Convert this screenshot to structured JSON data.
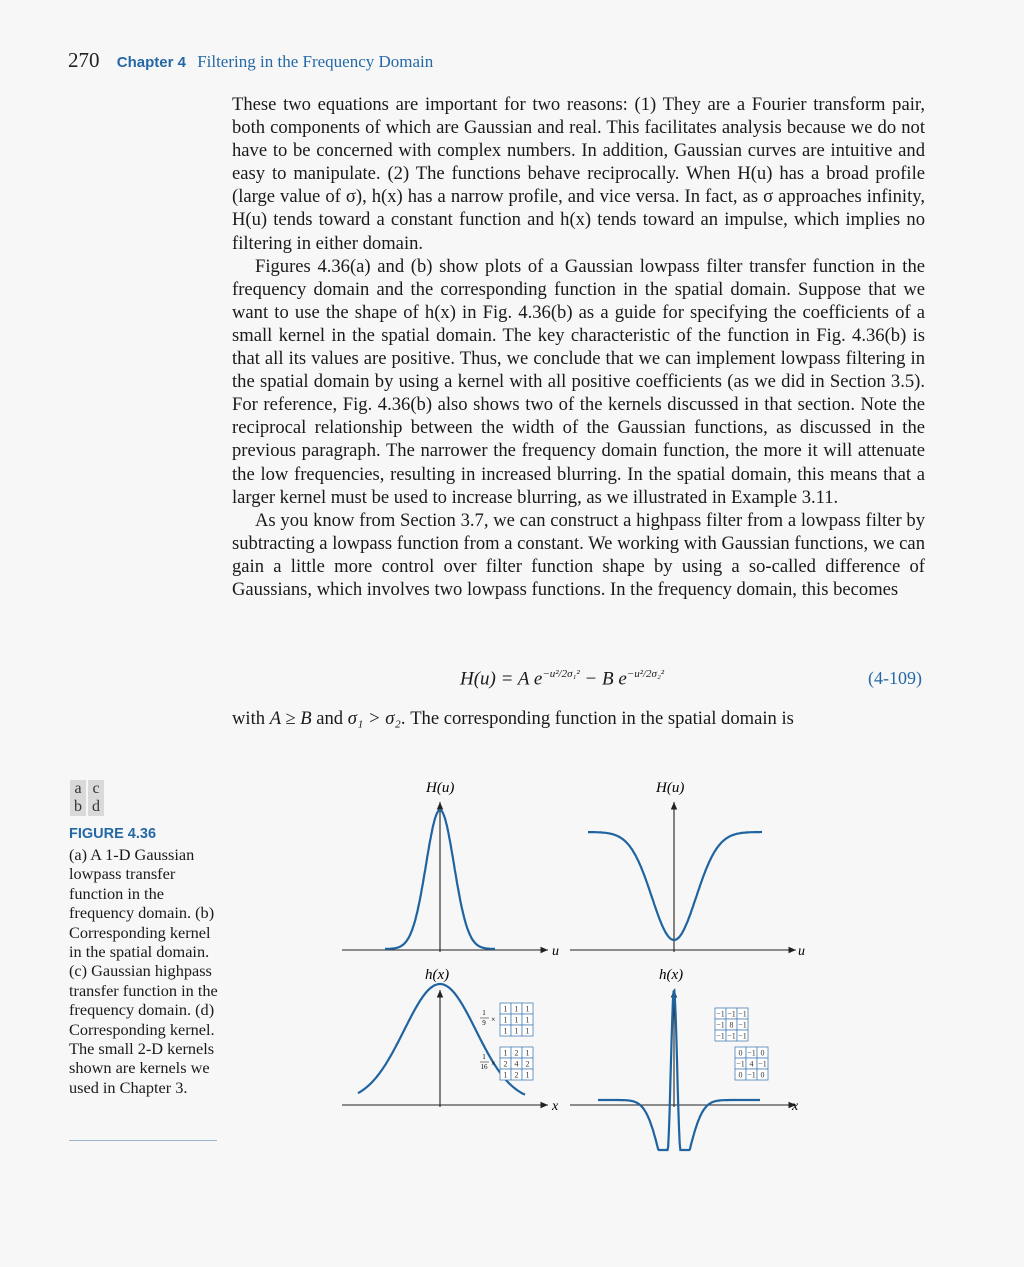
{
  "header": {
    "page_number": "270",
    "chapter_label": "Chapter 4",
    "chapter_title": "Filtering in the Frequency Domain"
  },
  "body": {
    "p1": "These two equations are important for two reasons: (1) They are a Fourier transform pair, both components of which are Gaussian and real. This facilitates analysis because we do not have to be concerned with complex numbers. In addition, Gaussian curves are intuitive and easy to manipulate. (2) The functions behave reciprocally. When H(u) has a broad profile (large value of σ), h(x) has a narrow profile, and vice versa. In fact, as σ approaches infinity, H(u) tends toward a constant function and h(x) tends toward an impulse, which implies no filtering in either domain.",
    "p2": "Figures 4.36(a) and (b) show plots of a Gaussian lowpass filter transfer function in the frequency domain and the corresponding function in the spatial domain. Suppose that we want to use the shape of h(x) in Fig. 4.36(b) as a guide for specifying the coefficients of a small kernel in the spatial domain. The key characteristic of the function in Fig. 4.36(b) is that all its values are positive. Thus, we conclude that we can implement lowpass filtering in the spatial domain by using a kernel with all positive coefficients (as we did in Section 3.5). For reference, Fig. 4.36(b) also shows two of the kernels discussed in that section. Note the reciprocal relationship between the width of the Gaussian functions, as discussed in the previous paragraph. The narrower the frequency domain function, the more it will attenuate the low frequencies, resulting in increased blurring. In the spatial domain, this means that a larger kernel must be used to increase blurring, as we illustrated in Example 3.11.",
    "p3": "As you know from Section 3.7, we can construct a highpass filter from a lowpass filter by subtracting a lowpass function from a constant. We working with Gaussian functions, we can gain a little more control over filter function shape by using a so-called difference of Gaussians, which involves two lowpass functions. In the frequency domain, this becomes"
  },
  "equation": {
    "lhs": "H(u) = A e",
    "exp1": "−u²/2σ₁²",
    "mid": " − B e",
    "exp2": "−u²/2σ₂²",
    "number": "(4-109)"
  },
  "after_equation": {
    "pre": "with ",
    "cond1": "A ≥ B",
    "and": " and ",
    "cond2": "σ₁ > σ₂",
    "post": ". The corresponding function in the spatial domain is"
  },
  "figure": {
    "panel_key": [
      "a",
      "c",
      "b",
      "d"
    ],
    "label": "FIGURE 4.36",
    "caption": "(a) A 1-D Gaussian lowpass transfer function in the frequency domain. (b) Corresponding kernel in the spatial domain. (c) Gaussian highpass transfer function in the frequency domain. (d) Corresponding kernel. The small 2-D kernels shown are kernels we used in Chapter 3.",
    "labels": {
      "Hu": "H(u)",
      "hx": "h(x)",
      "u": "u",
      "x": "x"
    },
    "kernel_box": {
      "scale": "1/9",
      "values": [
        [
          "1",
          "1",
          "1"
        ],
        [
          "1",
          "1",
          "1"
        ],
        [
          "1",
          "1",
          "1"
        ]
      ]
    },
    "kernel_gauss": {
      "scale": "1/16",
      "values": [
        [
          "1",
          "2",
          "1"
        ],
        [
          "2",
          "4",
          "2"
        ],
        [
          "1",
          "2",
          "1"
        ]
      ]
    },
    "kernel_lap8": {
      "values": [
        [
          "−1",
          "−1",
          "−1"
        ],
        [
          "−1",
          "8",
          "−1"
        ],
        [
          "−1",
          "−1",
          "−1"
        ]
      ]
    },
    "kernel_lap4": {
      "values": [
        [
          "0",
          "−1",
          "0"
        ],
        [
          "−1",
          "4",
          "−1"
        ],
        [
          "0",
          "−1",
          "0"
        ]
      ]
    }
  }
}
